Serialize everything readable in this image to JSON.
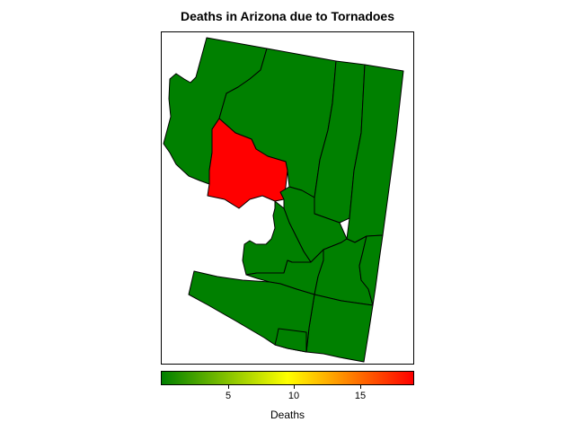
{
  "title": "Deaths in Arizona due to Tornadoes",
  "legend": {
    "label": "Deaths",
    "min": 0,
    "max": 19,
    "ticks": [
      {
        "value": 5,
        "label": "5"
      },
      {
        "value": 10,
        "label": "10"
      },
      {
        "value": 15,
        "label": "15"
      }
    ],
    "colors": {
      "low": "#008000",
      "mid": "#ffff00",
      "high": "#ff0000"
    }
  },
  "map_data": {
    "type": "choropleth",
    "region": "Arizona",
    "variable": "Deaths",
    "counties": [
      {
        "id": "mohave",
        "value": 0
      },
      {
        "id": "coconino",
        "value": 0
      },
      {
        "id": "navajo",
        "value": 0
      },
      {
        "id": "apache",
        "value": 0
      },
      {
        "id": "yavapai",
        "value": 19
      },
      {
        "id": "gila",
        "value": 0
      },
      {
        "id": "maricopa",
        "value": 0
      },
      {
        "id": "pinal",
        "value": 0
      },
      {
        "id": "graham",
        "value": 0
      },
      {
        "id": "greenlee",
        "value": 0
      },
      {
        "id": "cochise",
        "value": 0
      },
      {
        "id": "pima",
        "value": 0
      },
      {
        "id": "santa-cruz",
        "value": 0
      }
    ]
  }
}
